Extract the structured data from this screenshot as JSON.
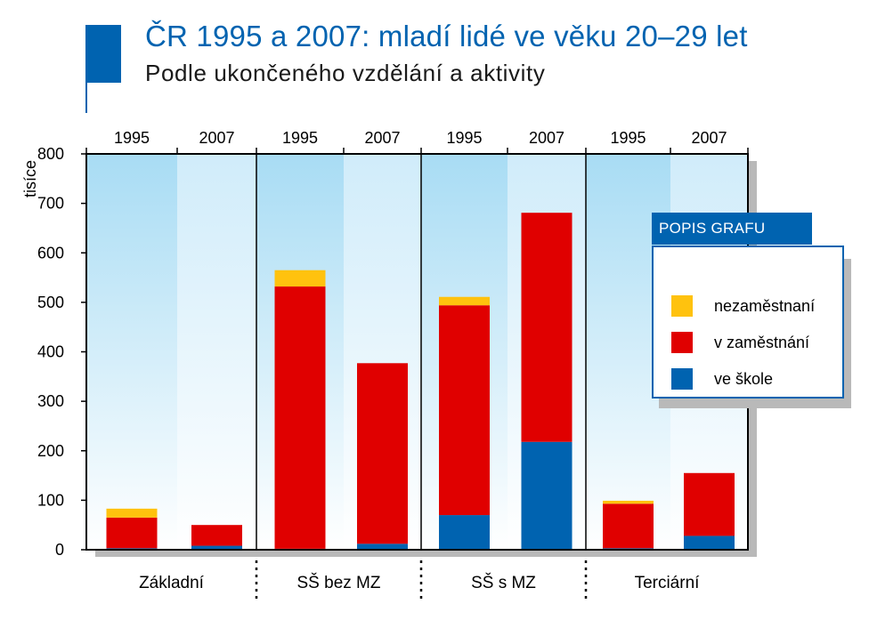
{
  "header": {
    "title": "ČR 1995 a 2007: mladí lidé ve věku 20–29 let",
    "subtitle": "Podle ukončeného vzdělání a aktivity"
  },
  "colors": {
    "brand": "#0063b0",
    "skola": "#0063b0",
    "zamestnani": "#e00000",
    "nezamestnani": "#ffc20e",
    "bg_top": "#a8dcf4",
    "bg_bottom": "#ffffff"
  },
  "legend": {
    "heading": "POPIS GRAFU",
    "items": [
      {
        "label": "nezaměstnaní",
        "color": "#ffc20e"
      },
      {
        "label": "v zaměstnání",
        "color": "#e00000"
      },
      {
        "label": "ve škole",
        "color": "#0063b0"
      }
    ]
  },
  "chart_data": {
    "type": "bar",
    "stacked": true,
    "ylabel": "tisíce",
    "ylim": [
      0,
      800
    ],
    "yticks": [
      0,
      100,
      200,
      300,
      400,
      500,
      600,
      700,
      800
    ],
    "groups": [
      "Základní",
      "SŠ bez MZ",
      "SŠ s MZ",
      "Terciární"
    ],
    "years": [
      "1995",
      "2007"
    ],
    "series": [
      {
        "name": "ve škole",
        "values": [
          [
            3,
            8
          ],
          [
            2,
            12
          ],
          [
            70,
            218
          ],
          [
            3,
            28
          ]
        ]
      },
      {
        "name": "v zaměstnání",
        "values": [
          [
            62,
            42
          ],
          [
            530,
            365
          ],
          [
            424,
            463
          ],
          [
            90,
            127
          ]
        ]
      },
      {
        "name": "nezaměstnaní",
        "values": [
          [
            18,
            0
          ],
          [
            33,
            0
          ],
          [
            17,
            0
          ],
          [
            6,
            0
          ]
        ]
      }
    ]
  }
}
